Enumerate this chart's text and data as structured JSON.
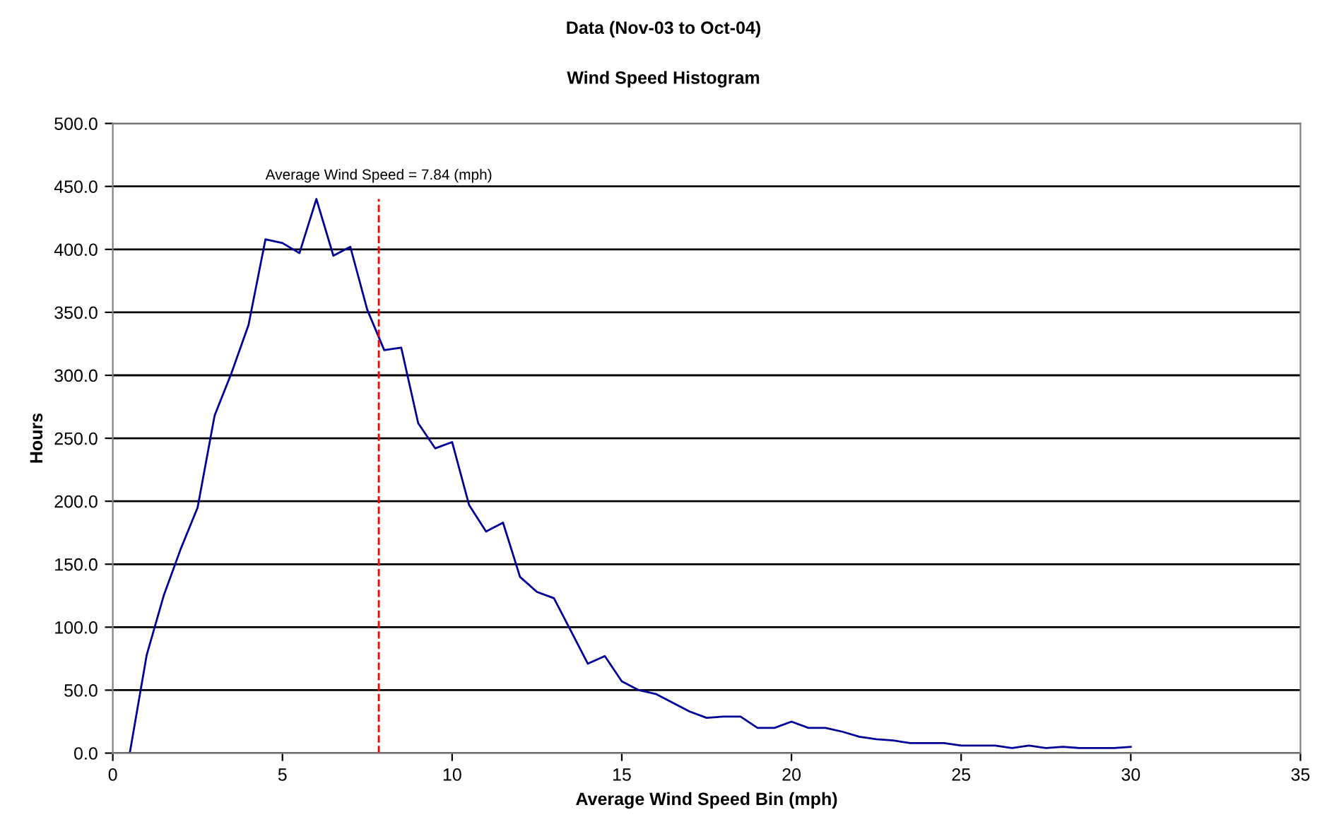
{
  "chart_data": {
    "type": "line",
    "title": "Data (Nov-03 to Oct-04)",
    "subtitle": "Wind Speed Histogram",
    "xlabel": "Average Wind Speed Bin (mph)",
    "ylabel": "Hours",
    "x": [
      0.5,
      1,
      1.5,
      2,
      2.5,
      3,
      3.5,
      4,
      4.5,
      5,
      5.5,
      6,
      6.5,
      7,
      7.5,
      8,
      8.5,
      9,
      9.5,
      10,
      10.5,
      11,
      11.5,
      12,
      12.5,
      13,
      13.5,
      14,
      14.5,
      15,
      15.5,
      16,
      16.5,
      17,
      17.5,
      18,
      18.5,
      19,
      19.5,
      20,
      20.5,
      21,
      21.5,
      22,
      22.5,
      23,
      23.5,
      24,
      24.5,
      25,
      25.5,
      26,
      26.5,
      27,
      27.5,
      28,
      28.5,
      29,
      29.5,
      30
    ],
    "series": [
      {
        "color": "#000099",
        "values": [
          0,
          78,
          125,
          162,
          195,
          268,
          302,
          340,
          408,
          405,
          397,
          440,
          395,
          402,
          352,
          320,
          322,
          262,
          242,
          247,
          197,
          176,
          183,
          140,
          128,
          123,
          97,
          71,
          77,
          57,
          50,
          47,
          40,
          33,
          28,
          29,
          29,
          20,
          20,
          25,
          20,
          20,
          17,
          13,
          11,
          10,
          8,
          8,
          8,
          6,
          6,
          6,
          4,
          6,
          4,
          5,
          4,
          4,
          4,
          5
        ]
      }
    ],
    "xlim": [
      0,
      35
    ],
    "xticks": [
      0,
      5,
      10,
      15,
      20,
      25,
      30,
      35
    ],
    "ylim": [
      0,
      500
    ],
    "yticks": [
      {
        "value": 0,
        "label": "0.0"
      },
      {
        "value": 50,
        "label": "50.0"
      },
      {
        "value": 100,
        "label": "100.0"
      },
      {
        "value": 150,
        "label": "150.0"
      },
      {
        "value": 200,
        "label": "200.0"
      },
      {
        "value": 250,
        "label": "250.0"
      },
      {
        "value": 300,
        "label": "300.0"
      },
      {
        "value": 350,
        "label": "350.0"
      },
      {
        "value": 400,
        "label": "400.0"
      },
      {
        "value": 450,
        "label": "450.0"
      },
      {
        "value": 500,
        "label": "500.0"
      }
    ],
    "ref_lines": [
      {
        "axis": "x",
        "value": 7.84,
        "label": "Average Wind Speed = 7.84 (mph)",
        "color": "#ff0000",
        "line_style": "dashed"
      }
    ],
    "grid": "y",
    "marker": "none",
    "line_style": "solid"
  }
}
